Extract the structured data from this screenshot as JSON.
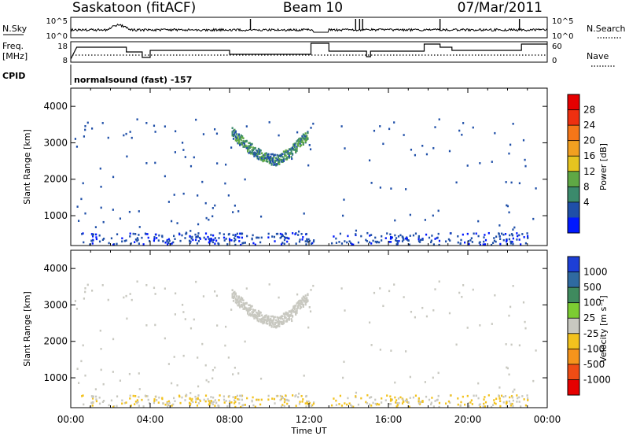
{
  "header": {
    "title_left": "Saskatoon (fitACF)",
    "title_center": "Beam 10",
    "title_right": "07/Mar/2011"
  },
  "strips": {
    "nsky_label": "N.Sky",
    "nsky_ticks": [
      "10^5",
      "10^0"
    ],
    "nsearch_label": "N.Search",
    "nsearch_ticks": [
      "10^5",
      "10^0"
    ],
    "freq_label_line1": "Freq.",
    "freq_label_line2": "[MHz]",
    "freq_ticks": [
      "18",
      "8"
    ],
    "nave_label": "Nave",
    "nave_ticks": [
      "60",
      "0"
    ],
    "cpid_label": "CPID",
    "cpid_text": "normalsound (fast) -157"
  },
  "chart_data": [
    {
      "type": "heatmap",
      "name": "power",
      "ylabel": "Slant Range [km]",
      "xlabel": "",
      "ylim": [
        180,
        4500
      ],
      "xlim": [
        0,
        24
      ],
      "yticks": [
        1000,
        2000,
        3000,
        4000
      ],
      "colorbar": {
        "label": "Power [dB]",
        "ticks": [
          "4",
          "8",
          "12",
          "16",
          "20",
          "24",
          "28"
        ],
        "colors": [
          "#0018ff",
          "#1f4fa8",
          "#3b8a6c",
          "#5fa845",
          "#e6c41f",
          "#f2a020",
          "#f57618",
          "#ee3010",
          "#e60000"
        ]
      }
    },
    {
      "type": "heatmap",
      "name": "velocity",
      "ylabel": "Slant Range [km]",
      "xlabel": "Time UT",
      "ylim": [
        180,
        4500
      ],
      "xlim": [
        0,
        24
      ],
      "yticks": [
        1000,
        2000,
        3000,
        4000
      ],
      "xticks": [
        "00:00",
        "04:00",
        "08:00",
        "12:00",
        "16:00",
        "20:00",
        "00:00"
      ],
      "colorbar": {
        "label": "Velocity [m s⁻¹]",
        "ticks": [
          "1000",
          "500",
          "100",
          "25",
          "-25",
          "-100",
          "-500",
          "-1000"
        ],
        "colors": [
          "#1d3fd6",
          "#2f6aa0",
          "#3f8a5e",
          "#7ccc32",
          "#c8c8c0",
          "#f2c21e",
          "#f5941c",
          "#ef4c14",
          "#e60000"
        ]
      }
    }
  ]
}
